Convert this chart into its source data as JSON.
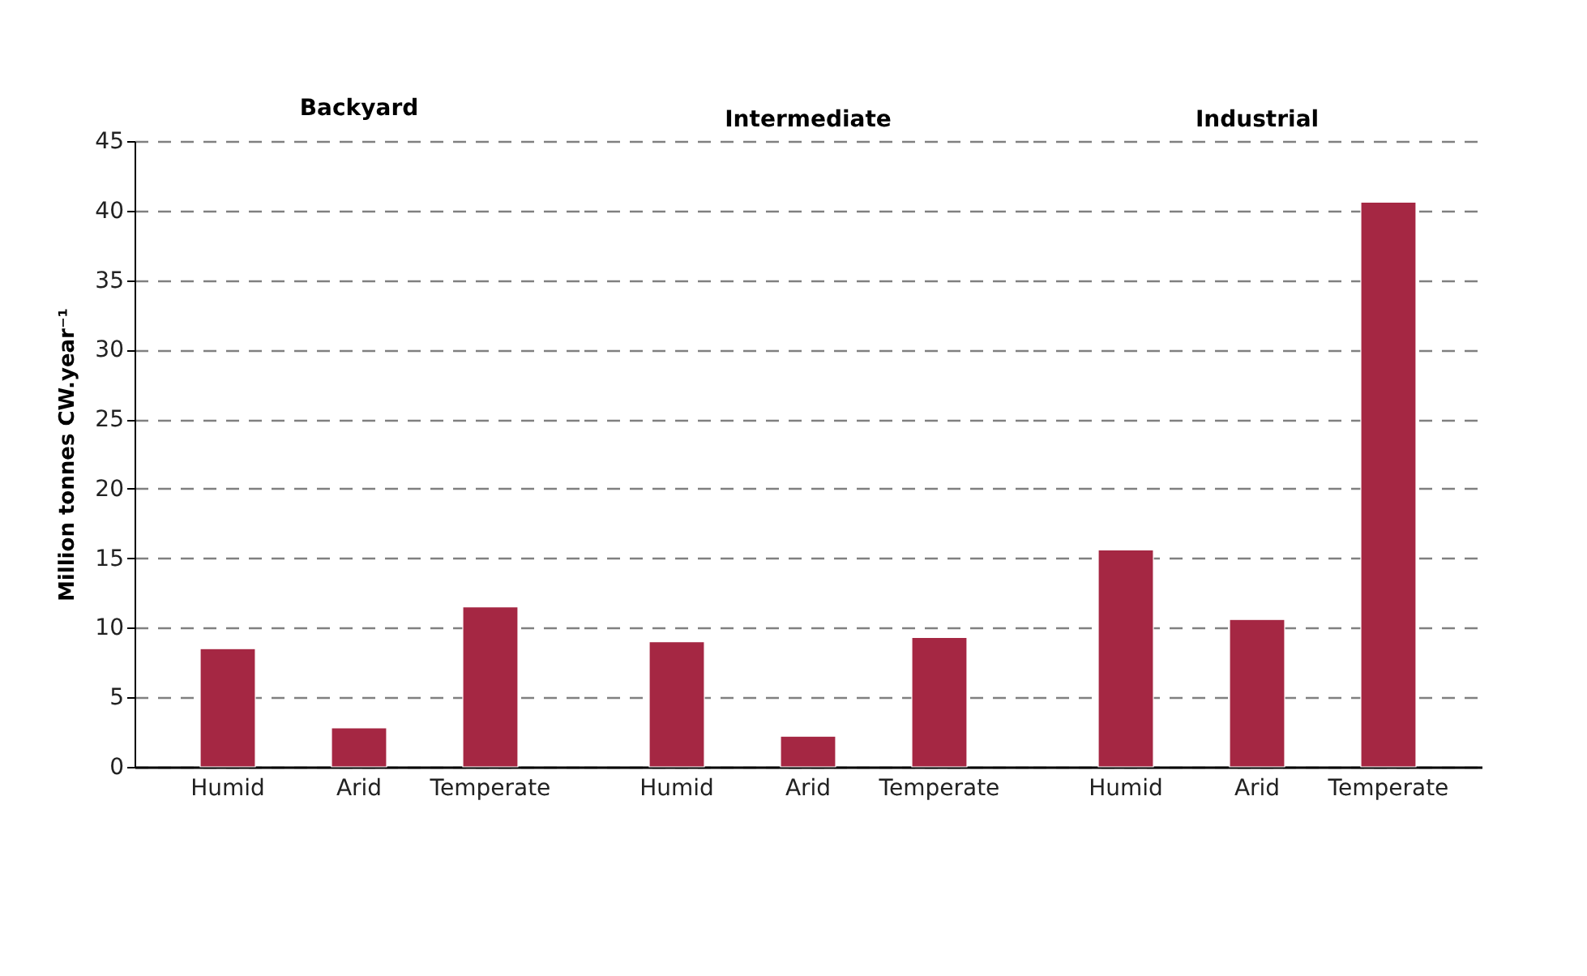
{
  "chart_data": [
    {
      "type": "bar",
      "title": "Backyard",
      "ylabel": "Million tonnes CW.year⁻¹",
      "categories": [
        "Humid",
        "Arid",
        "Temperate"
      ],
      "values": [
        8.5,
        2.8,
        11.5
      ],
      "color": "#a52743",
      "ylim": [
        0,
        45
      ],
      "yticks": [
        0,
        5,
        10,
        15,
        20,
        25,
        30,
        35,
        40,
        45
      ],
      "grid": "y"
    },
    {
      "type": "bar",
      "title": "Intermediate",
      "categories": [
        "Humid",
        "Arid",
        "Temperate"
      ],
      "values": [
        9.0,
        2.2,
        9.3
      ],
      "color": "#a52743",
      "ylim": [
        0,
        45
      ],
      "yticks": [
        0,
        5,
        10,
        15,
        20,
        25,
        30,
        35,
        40,
        45
      ],
      "grid": "y",
      "tick_labels": "x"
    },
    {
      "type": "bar",
      "title": "Industrial",
      "categories": [
        "Humid",
        "Arid",
        "Temperate"
      ],
      "values": [
        15.6,
        10.6,
        40.6
      ],
      "color": "#a52743",
      "ylim": [
        0,
        45
      ],
      "yticks": [
        0,
        5,
        10,
        15,
        20,
        25,
        30,
        35,
        40,
        45
      ],
      "grid": "y",
      "tick_labels": "x"
    }
  ]
}
